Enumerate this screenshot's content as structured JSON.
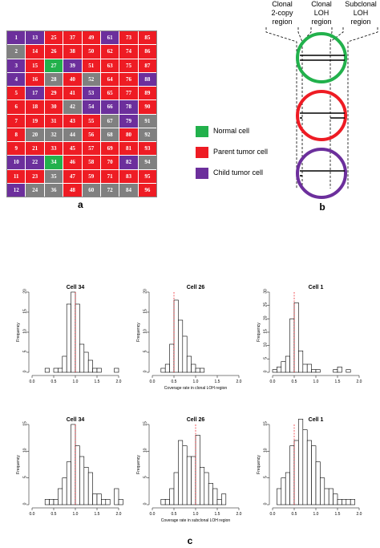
{
  "panel_labels": {
    "a": "a",
    "b": "b",
    "c": "c"
  },
  "colors": {
    "normal": "#22b14c",
    "parent": "#ee1c24",
    "child": "#6c2f9c",
    "empty": "#808080"
  },
  "grid": {
    "rows": [
      [
        [
          "1",
          "child"
        ],
        [
          "13",
          "child"
        ],
        [
          "25",
          "parent"
        ],
        [
          "37",
          "parent"
        ],
        [
          "49",
          "parent"
        ],
        [
          "61",
          "child"
        ],
        [
          "73",
          "parent"
        ],
        [
          "85",
          "parent"
        ]
      ],
      [
        [
          "2",
          "empty"
        ],
        [
          "14",
          "parent"
        ],
        [
          "26",
          "parent"
        ],
        [
          "38",
          "parent"
        ],
        [
          "50",
          "parent"
        ],
        [
          "62",
          "parent"
        ],
        [
          "74",
          "parent"
        ],
        [
          "86",
          "parent"
        ]
      ],
      [
        [
          "3",
          "child"
        ],
        [
          "15",
          "parent"
        ],
        [
          "27",
          "normal"
        ],
        [
          "39",
          "child"
        ],
        [
          "51",
          "parent"
        ],
        [
          "63",
          "parent"
        ],
        [
          "75",
          "parent"
        ],
        [
          "87",
          "parent"
        ]
      ],
      [
        [
          "4",
          "child"
        ],
        [
          "16",
          "parent"
        ],
        [
          "28",
          "empty"
        ],
        [
          "40",
          "parent"
        ],
        [
          "52",
          "empty"
        ],
        [
          "64",
          "parent"
        ],
        [
          "76",
          "parent"
        ],
        [
          "88",
          "child"
        ]
      ],
      [
        [
          "5",
          "parent"
        ],
        [
          "17",
          "child"
        ],
        [
          "29",
          "parent"
        ],
        [
          "41",
          "parent"
        ],
        [
          "53",
          "child"
        ],
        [
          "65",
          "parent"
        ],
        [
          "77",
          "parent"
        ],
        [
          "89",
          "parent"
        ]
      ],
      [
        [
          "6",
          "parent"
        ],
        [
          "18",
          "parent"
        ],
        [
          "30",
          "parent"
        ],
        [
          "42",
          "empty"
        ],
        [
          "54",
          "child"
        ],
        [
          "66",
          "child"
        ],
        [
          "78",
          "child"
        ],
        [
          "90",
          "parent"
        ]
      ],
      [
        [
          "7",
          "parent"
        ],
        [
          "19",
          "parent"
        ],
        [
          "31",
          "parent"
        ],
        [
          "43",
          "parent"
        ],
        [
          "55",
          "parent"
        ],
        [
          "67",
          "empty"
        ],
        [
          "79",
          "child"
        ],
        [
          "91",
          "empty"
        ]
      ],
      [
        [
          "8",
          "parent"
        ],
        [
          "20",
          "empty"
        ],
        [
          "32",
          "empty"
        ],
        [
          "44",
          "empty"
        ],
        [
          "56",
          "parent"
        ],
        [
          "68",
          "empty"
        ],
        [
          "80",
          "parent"
        ],
        [
          "92",
          "empty"
        ]
      ],
      [
        [
          "9",
          "parent"
        ],
        [
          "21",
          "parent"
        ],
        [
          "33",
          "parent"
        ],
        [
          "45",
          "parent"
        ],
        [
          "57",
          "parent"
        ],
        [
          "69",
          "parent"
        ],
        [
          "81",
          "parent"
        ],
        [
          "93",
          "parent"
        ]
      ],
      [
        [
          "10",
          "child"
        ],
        [
          "22",
          "child"
        ],
        [
          "34",
          "normal"
        ],
        [
          "46",
          "parent"
        ],
        [
          "58",
          "parent"
        ],
        [
          "70",
          "parent"
        ],
        [
          "82",
          "child"
        ],
        [
          "94",
          "empty"
        ]
      ],
      [
        [
          "11",
          "parent"
        ],
        [
          "23",
          "parent"
        ],
        [
          "35",
          "empty"
        ],
        [
          "47",
          "parent"
        ],
        [
          "59",
          "parent"
        ],
        [
          "71",
          "parent"
        ],
        [
          "83",
          "parent"
        ],
        [
          "95",
          "parent"
        ]
      ],
      [
        [
          "12",
          "child"
        ],
        [
          "24",
          "empty"
        ],
        [
          "36",
          "empty"
        ],
        [
          "48",
          "parent"
        ],
        [
          "60",
          "empty"
        ],
        [
          "72",
          "empty"
        ],
        [
          "84",
          "empty"
        ],
        [
          "96",
          "parent"
        ]
      ]
    ]
  },
  "legend": {
    "normal": "Normal cell",
    "parent": "Parent tumor cell",
    "child": "Child tumor cell"
  },
  "regions": {
    "clonal_2copy": [
      "Clonal",
      "2-copy",
      "region"
    ],
    "clonal_loh": [
      "Clonal",
      "LOH",
      "region"
    ],
    "subclonal_loh": [
      "Subclonal",
      "LOH",
      "region"
    ]
  },
  "chart_data": [
    {
      "type": "bar",
      "title": "Cell 34",
      "ylabel": "Frequency",
      "xlabel": "",
      "xlim": [
        0,
        2
      ],
      "ylim": [
        0,
        20
      ],
      "yticks": [
        0,
        5,
        10,
        15,
        20
      ],
      "xticks": [
        "0.0",
        "0.5",
        "1.0",
        "1.5",
        "2.0"
      ],
      "binwidth": 0.1,
      "bins": [
        0.3,
        0.4,
        0.5,
        0.6,
        0.7,
        0.8,
        0.9,
        1.0,
        1.1,
        1.2,
        1.3,
        1.4,
        1.5,
        1.6,
        1.7,
        1.8,
        1.9
      ],
      "values": [
        1,
        0,
        1,
        1,
        4,
        17,
        20,
        17,
        7,
        5,
        3,
        1,
        1,
        0,
        0,
        0,
        1
      ],
      "ref": 1.0
    },
    {
      "type": "bar",
      "title": "Cell 26",
      "ylabel": "Frequency",
      "xlabel": "Coverage rate in clonal LOH region",
      "xlim": [
        0,
        2
      ],
      "ylim": [
        0,
        20
      ],
      "yticks": [
        0,
        5,
        10,
        15,
        20
      ],
      "xticks": [
        "0.0",
        "0.5",
        "1.0",
        "1.5",
        "2.0"
      ],
      "binwidth": 0.1,
      "bins": [
        0.2,
        0.3,
        0.4,
        0.5,
        0.6,
        0.7,
        0.8,
        0.9,
        1.0,
        1.1
      ],
      "values": [
        1,
        2,
        7,
        18,
        13,
        9,
        4,
        2,
        1,
        1
      ],
      "ref": 0.5
    },
    {
      "type": "bar",
      "title": "Cell 1",
      "ylabel": "Frequency",
      "xlabel": "",
      "xlim": [
        0,
        2
      ],
      "ylim": [
        0,
        30
      ],
      "yticks": [
        0,
        5,
        10,
        15,
        20,
        25,
        30
      ],
      "xticks": [
        "0.0",
        "0.5",
        "1.0",
        "1.5",
        "2.0"
      ],
      "binwidth": 0.1,
      "bins": [
        0.0,
        0.1,
        0.2,
        0.3,
        0.4,
        0.5,
        0.6,
        0.7,
        0.8,
        0.9,
        1.0,
        1.1,
        1.2,
        1.3,
        1.4,
        1.5,
        1.6,
        1.7
      ],
      "values": [
        1,
        2,
        4,
        6,
        20,
        26,
        8,
        3,
        3,
        1,
        1,
        0,
        0,
        0,
        1,
        2,
        0,
        1
      ],
      "ref": 0.5
    },
    {
      "type": "bar",
      "title": "Cell 34",
      "ylabel": "Frequency",
      "xlabel": "",
      "xlim": [
        0,
        2
      ],
      "ylim": [
        0,
        15
      ],
      "yticks": [
        0,
        5,
        10,
        15
      ],
      "xticks": [
        "0.0",
        "0.5",
        "1.0",
        "1.5",
        "2.0"
      ],
      "binwidth": 0.1,
      "bins": [
        0.3,
        0.4,
        0.5,
        0.6,
        0.7,
        0.8,
        0.9,
        1.0,
        1.1,
        1.2,
        1.3,
        1.4,
        1.5,
        1.6,
        1.7,
        1.8,
        1.9,
        2.0
      ],
      "values": [
        1,
        1,
        1,
        3,
        5,
        8,
        15,
        11,
        9,
        7,
        6,
        2,
        2,
        1,
        1,
        0,
        3,
        1
      ],
      "ref": 1.0
    },
    {
      "type": "bar",
      "title": "Cell 26",
      "ylabel": "Frequency",
      "xlabel": "Coverage rate in subclonal LOH region",
      "xlim": [
        0,
        2
      ],
      "ylim": [
        0,
        15
      ],
      "yticks": [
        0,
        5,
        10,
        15
      ],
      "xticks": [
        "0.0",
        "0.5",
        "1.0",
        "1.5",
        "2.0"
      ],
      "binwidth": 0.1,
      "bins": [
        0.2,
        0.3,
        0.4,
        0.5,
        0.6,
        0.7,
        0.8,
        0.9,
        1.0,
        1.1,
        1.2,
        1.3,
        1.4,
        1.5,
        1.6
      ],
      "values": [
        1,
        1,
        3,
        6,
        12,
        11,
        9,
        9,
        13,
        7,
        6,
        4,
        3,
        1,
        2
      ],
      "ref": 1.0
    },
    {
      "type": "bar",
      "title": "Cell 1",
      "ylabel": "Frequency",
      "xlabel": "",
      "xlim": [
        0,
        2
      ],
      "ylim": [
        0,
        15
      ],
      "yticks": [
        0,
        5,
        10,
        15
      ],
      "xticks": [
        "0.0",
        "0.5",
        "1.0",
        "1.5",
        "2.0"
      ],
      "binwidth": 0.1,
      "bins": [
        0.1,
        0.2,
        0.3,
        0.4,
        0.5,
        0.6,
        0.7,
        0.8,
        0.9,
        1.0,
        1.1,
        1.2,
        1.3,
        1.4,
        1.5,
        1.6,
        1.7,
        1.8
      ],
      "values": [
        3,
        5,
        6,
        11,
        12,
        16,
        14,
        12,
        11,
        8,
        5,
        3,
        3,
        2,
        1,
        1,
        1,
        1
      ],
      "ref": 0.5
    }
  ]
}
